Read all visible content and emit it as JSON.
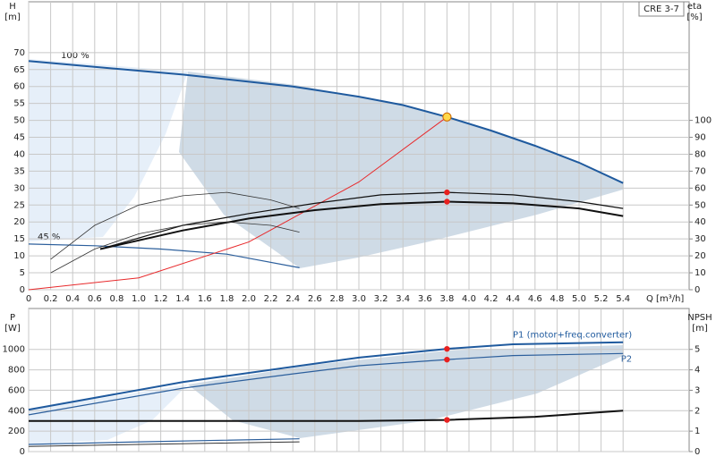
{
  "chart_data": [
    {
      "type": "line",
      "title": "CRE 3-7",
      "x_label": "Q [m³/h]",
      "y_label": "H",
      "y_unit": "[m]",
      "y2_label": "eta",
      "y2_unit": "[%]",
      "annotations": [
        "100 %",
        "45 %"
      ],
      "xlim": [
        0,
        6
      ],
      "ylim": [
        0,
        85
      ],
      "y2lim": [
        0,
        170
      ],
      "xticks": [
        0,
        0.2,
        0.4,
        0.6,
        0.8,
        {
          "value": 1,
          "label": "1.0"
        },
        1.2,
        1.4,
        1.6,
        1.8,
        {
          "value": 2,
          "label": "2.0"
        },
        2.2,
        2.4,
        2.6,
        2.8,
        {
          "value": 3,
          "label": "3.0"
        },
        3.2,
        3.4,
        3.6,
        3.8,
        {
          "value": 4,
          "label": "4.0"
        },
        4.2,
        4.4,
        4.6,
        4.8,
        {
          "value": 5,
          "label": "5.0"
        },
        5.2,
        5.4
      ],
      "yticks": [
        0,
        5,
        10,
        15,
        20,
        25,
        30,
        35,
        40,
        45,
        50,
        55,
        60,
        65,
        70
      ],
      "y2ticks": [
        0,
        10,
        20,
        30,
        40,
        50,
        60,
        70,
        80,
        90,
        100
      ],
      "grid": true,
      "duty_point": {
        "x": 3.8,
        "y": 51
      },
      "series": [
        {
          "color": "#1f5a9e",
          "width": 2,
          "x": [
            0,
            1.4,
            2.4,
            3.0,
            3.4,
            3.8,
            4.2,
            4.6,
            5.0,
            5.4
          ],
          "values": [
            67.5,
            63.5,
            60,
            57,
            54.5,
            51,
            47,
            42.5,
            37.5,
            31.5
          ]
        },
        {
          "color": "#2c5f9c",
          "width": 1.2,
          "x": [
            0,
            0.6,
            1.2,
            1.8,
            2.46
          ],
          "values": [
            13.5,
            13,
            12,
            10.5,
            6.5
          ]
        },
        {
          "color": "#e8292b",
          "width": 1,
          "x": [
            0,
            1.0,
            2.0,
            3.0,
            3.8
          ],
          "values": [
            0,
            3.5,
            14.1,
            31.8,
            51
          ]
        },
        {
          "color": "#111111",
          "width": 1.2,
          "axis": "y2",
          "x": [
            0.65,
            1.4,
            2.0,
            2.6,
            3.2,
            3.8,
            4.4,
            5.0,
            5.4
          ],
          "values": [
            24,
            38,
            45,
            51,
            56,
            57.5,
            56,
            52,
            48
          ]
        },
        {
          "color": "#111111",
          "width": 2,
          "axis": "y2",
          "x": [
            0.65,
            1.4,
            2.0,
            2.6,
            3.2,
            3.8,
            4.4,
            5.0,
            5.4
          ],
          "values": [
            24,
            35,
            42,
            47,
            50.5,
            52,
            51,
            48,
            43.5
          ]
        },
        {
          "color": "#333333",
          "width": 0.8,
          "axis": "y2",
          "x": [
            0.2,
            0.6,
            1.0,
            1.4,
            1.8,
            2.2,
            2.46
          ],
          "values": [
            18,
            38,
            50,
            55.5,
            57.5,
            53,
            48
          ]
        },
        {
          "color": "#333333",
          "width": 0.8,
          "axis": "y2",
          "x": [
            0.2,
            0.6,
            1.0,
            1.4,
            1.8,
            2.2,
            2.46
          ],
          "values": [
            10,
            24,
            33,
            38,
            40,
            38,
            34
          ]
        }
      ]
    },
    {
      "type": "line",
      "y_label": "P",
      "y_unit": "[W]",
      "y2_label": "NPSH",
      "y2_unit": "[m]",
      "xlim": [
        0,
        6
      ],
      "ylim": [
        0,
        1400
      ],
      "y2lim": [
        0,
        7
      ],
      "yticks": [
        0,
        200,
        400,
        600,
        800,
        1000
      ],
      "y2ticks": [
        0,
        1,
        2,
        3,
        4,
        5
      ],
      "grid": true,
      "series": [
        {
          "name": "P1 (motor+freq.converter)",
          "color": "#1f5a9e",
          "width": 2,
          "x": [
            0,
            1.4,
            2.4,
            3.0,
            3.8,
            4.4,
            5.4
          ],
          "values": [
            410,
            680,
            830,
            920,
            1005,
            1050,
            1070
          ]
        },
        {
          "name": "P2",
          "color": "#2c5f9c",
          "width": 1.2,
          "x": [
            0,
            1.4,
            2.4,
            3.0,
            3.8,
            4.4,
            5.4
          ],
          "values": [
            360,
            620,
            760,
            840,
            900,
            940,
            960
          ]
        },
        {
          "color": "#111111",
          "width": 2,
          "axis": "y2",
          "x": [
            0,
            1.4,
            3.0,
            3.8,
            4.6,
            5.4
          ],
          "values": [
            1.5,
            1.5,
            1.5,
            1.55,
            1.7,
            2.0
          ]
        },
        {
          "color": "#2c5f9c",
          "width": 1.2,
          "x": [
            0,
            1.0,
            2.46
          ],
          "values": [
            70,
            95,
            125
          ]
        },
        {
          "color": "#333333",
          "width": 1,
          "x": [
            0,
            1.0,
            2.46
          ],
          "values": [
            50,
            70,
            95
          ]
        }
      ]
    }
  ]
}
